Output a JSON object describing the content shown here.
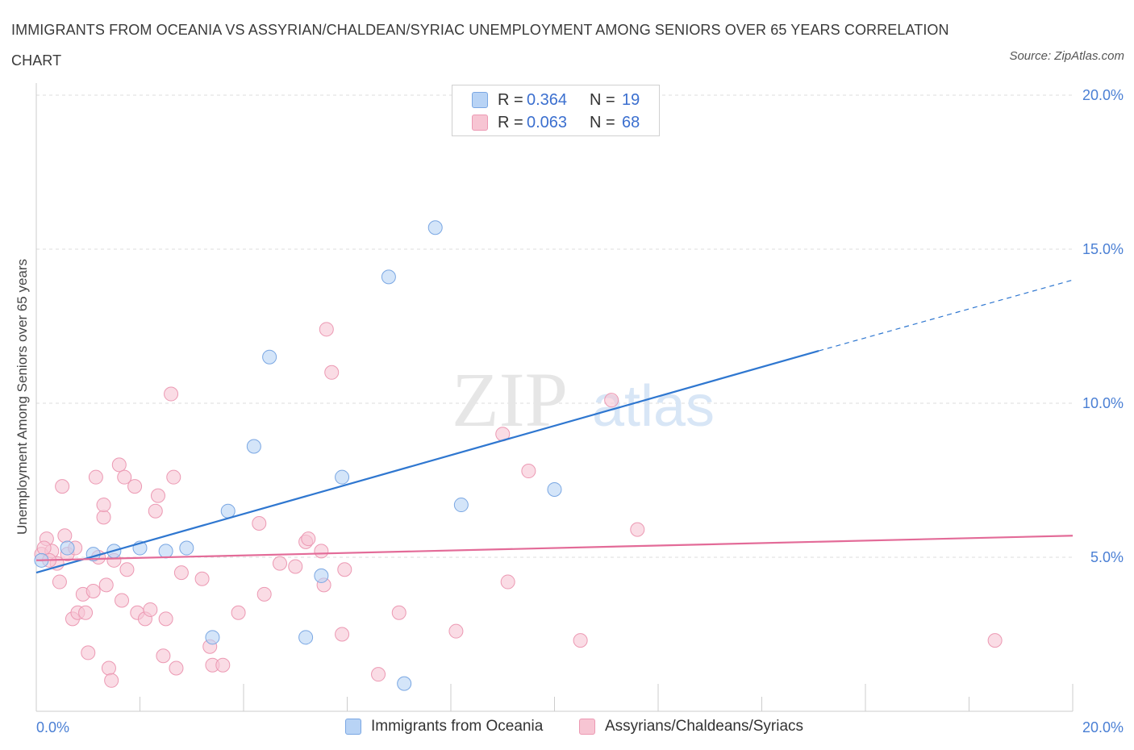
{
  "title": "IMMIGRANTS FROM OCEANIA VS ASSYRIAN/CHALDEAN/SYRIAC UNEMPLOYMENT AMONG SENIORS OVER 65 YEARS CORRELATION CHART",
  "source": "Source: ZipAtlas.com",
  "watermark": {
    "zip": "ZIP",
    "atlas": "atlas"
  },
  "legend": {
    "r_label": "R =",
    "n_label": "N =",
    "series1": {
      "r": "0.364",
      "n": "19"
    },
    "series2": {
      "r": "0.063",
      "n": "68"
    }
  },
  "colors": {
    "blue_fill": "#b8d3f5",
    "blue_stroke": "#7aa7e3",
    "blue_line": "#2f77d0",
    "pink_fill": "#f7c5d3",
    "pink_stroke": "#ec99b3",
    "pink_line": "#e36b98",
    "grid": "#dddddd",
    "axis_text": "#4a7fd4"
  },
  "chart_data": {
    "type": "scatter",
    "title": "IMMIGRANTS FROM OCEANIA VS ASSYRIAN/CHALDEAN/SYRIAC UNEMPLOYMENT AMONG SENIORS OVER 65 YEARS CORRELATION CHART",
    "xlabel": "",
    "ylabel": "Unemployment Among Seniors over 65 years",
    "xlim": [
      0,
      20
    ],
    "ylim": [
      0,
      20
    ],
    "x_tick_labels": [
      "0.0%",
      "20.0%"
    ],
    "y_tick_labels": [
      "5.0%",
      "10.0%",
      "15.0%",
      "20.0%"
    ],
    "y_ticks": [
      5,
      10,
      15,
      20
    ],
    "series": [
      {
        "name": "Immigrants from Oceania",
        "color": "blue",
        "points": [
          [
            0.1,
            4.9
          ],
          [
            1.1,
            5.1
          ],
          [
            1.5,
            5.2
          ],
          [
            2.0,
            5.3
          ],
          [
            2.5,
            5.2
          ],
          [
            2.9,
            5.3
          ],
          [
            3.4,
            2.4
          ],
          [
            3.7,
            6.5
          ],
          [
            4.2,
            8.6
          ],
          [
            4.5,
            11.5
          ],
          [
            5.2,
            2.4
          ],
          [
            5.5,
            4.4
          ],
          [
            5.9,
            7.6
          ],
          [
            6.8,
            14.1
          ],
          [
            7.1,
            0.9
          ],
          [
            7.7,
            15.7
          ],
          [
            8.2,
            6.7
          ],
          [
            10.0,
            7.2
          ],
          [
            0.6,
            5.3
          ]
        ],
        "trend": {
          "x0": 0,
          "y0": 4.5,
          "x1": 15.1,
          "y1": 11.7,
          "dash_to_x": 20,
          "dash_to_y": 14.0
        }
      },
      {
        "name": "Assyrians/Chaldeans/Syriacs",
        "color": "pink",
        "points": [
          [
            0.1,
            5.1
          ],
          [
            0.2,
            5.6
          ],
          [
            0.3,
            5.2
          ],
          [
            0.4,
            4.8
          ],
          [
            0.45,
            4.2
          ],
          [
            0.5,
            7.3
          ],
          [
            0.55,
            5.7
          ],
          [
            0.6,
            5.1
          ],
          [
            0.7,
            3.0
          ],
          [
            0.75,
            5.3
          ],
          [
            0.8,
            3.2
          ],
          [
            0.9,
            3.8
          ],
          [
            0.95,
            3.2
          ],
          [
            1.0,
            1.9
          ],
          [
            1.1,
            3.9
          ],
          [
            1.15,
            7.6
          ],
          [
            1.2,
            5.0
          ],
          [
            1.3,
            6.3
          ],
          [
            1.3,
            6.7
          ],
          [
            1.35,
            4.1
          ],
          [
            1.4,
            1.4
          ],
          [
            1.45,
            1.0
          ],
          [
            1.5,
            4.9
          ],
          [
            1.6,
            8.0
          ],
          [
            1.65,
            3.6
          ],
          [
            1.7,
            7.6
          ],
          [
            1.75,
            4.6
          ],
          [
            1.9,
            7.3
          ],
          [
            1.95,
            3.2
          ],
          [
            2.1,
            3.0
          ],
          [
            2.2,
            3.3
          ],
          [
            2.3,
            6.5
          ],
          [
            2.35,
            7.0
          ],
          [
            2.45,
            1.8
          ],
          [
            2.5,
            3.0
          ],
          [
            2.6,
            10.3
          ],
          [
            2.65,
            7.6
          ],
          [
            2.7,
            1.4
          ],
          [
            2.8,
            4.5
          ],
          [
            3.2,
            4.3
          ],
          [
            3.35,
            2.1
          ],
          [
            3.4,
            1.5
          ],
          [
            3.6,
            1.5
          ],
          [
            3.9,
            3.2
          ],
          [
            4.3,
            6.1
          ],
          [
            4.4,
            3.8
          ],
          [
            4.7,
            4.8
          ],
          [
            5.0,
            4.7
          ],
          [
            5.2,
            5.5
          ],
          [
            5.25,
            5.6
          ],
          [
            5.5,
            5.2
          ],
          [
            5.55,
            4.1
          ],
          [
            5.6,
            12.4
          ],
          [
            5.7,
            11.0
          ],
          [
            5.9,
            2.5
          ],
          [
            5.95,
            4.6
          ],
          [
            6.6,
            1.2
          ],
          [
            7.0,
            3.2
          ],
          [
            8.1,
            2.6
          ],
          [
            9.0,
            9.0
          ],
          [
            9.1,
            4.2
          ],
          [
            9.5,
            7.8
          ],
          [
            10.5,
            2.3
          ],
          [
            11.1,
            10.1
          ],
          [
            11.6,
            5.9
          ],
          [
            18.5,
            2.3
          ],
          [
            0.15,
            5.3
          ],
          [
            0.25,
            4.9
          ]
        ],
        "trend": {
          "x0": 0,
          "y0": 4.9,
          "x1": 20,
          "y1": 5.7
        }
      }
    ]
  },
  "bottom_legend": {
    "series1": "Immigrants from Oceania",
    "series2": "Assyrians/Chaldeans/Syriacs"
  }
}
